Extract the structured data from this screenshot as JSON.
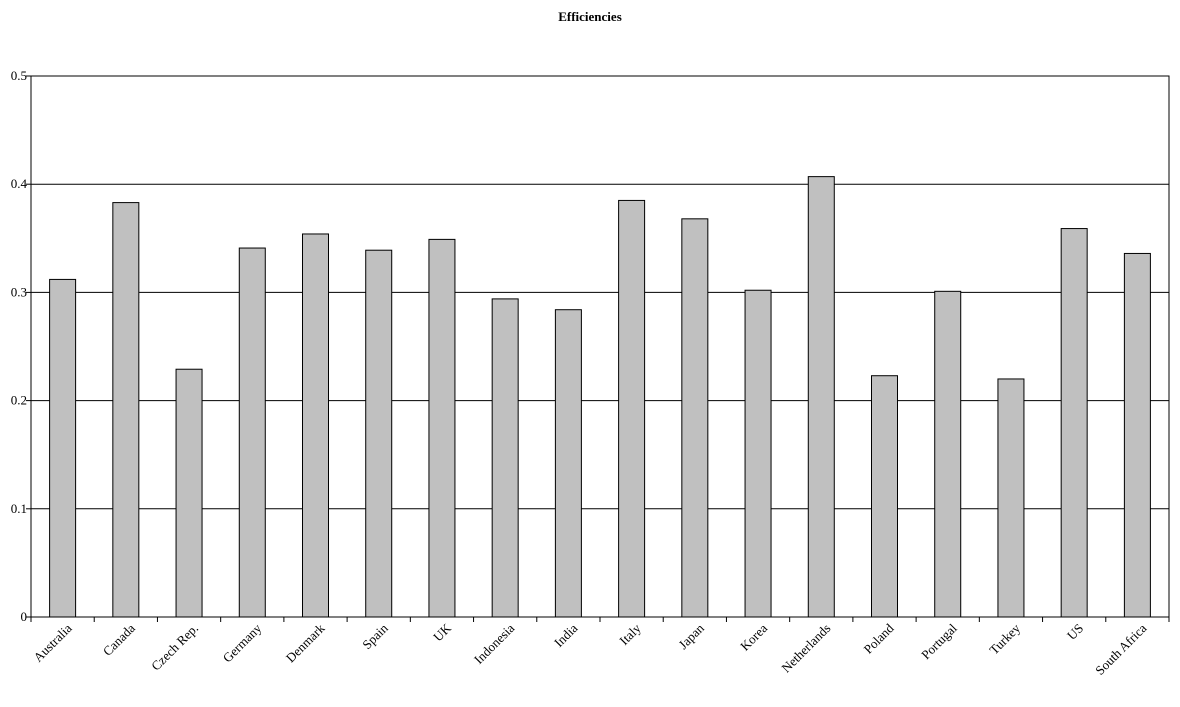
{
  "chart_data": {
    "type": "bar",
    "title": "Efficiencies",
    "xlabel": "",
    "ylabel": "",
    "categories": [
      "Australia",
      "Canada",
      "Czech Rep.",
      "Germany",
      "Denmark",
      "Spain",
      "UK",
      "Indonesia",
      "India",
      "Italy",
      "Japan",
      "Korea",
      "Netherlands",
      "Poland",
      "Portugal",
      "Turkey",
      "US",
      "South Africa"
    ],
    "values": [
      0.312,
      0.383,
      0.229,
      0.341,
      0.354,
      0.339,
      0.349,
      0.294,
      0.284,
      0.385,
      0.368,
      0.302,
      0.407,
      0.223,
      0.301,
      0.22,
      0.359,
      0.336
    ],
    "ylim": [
      0,
      0.5
    ],
    "yticks": [
      "0",
      "0.1",
      "0.2",
      "0.3",
      "0.4",
      "0.5"
    ],
    "grid": true,
    "legend": "none",
    "bar_color": "#c0c0c0"
  }
}
